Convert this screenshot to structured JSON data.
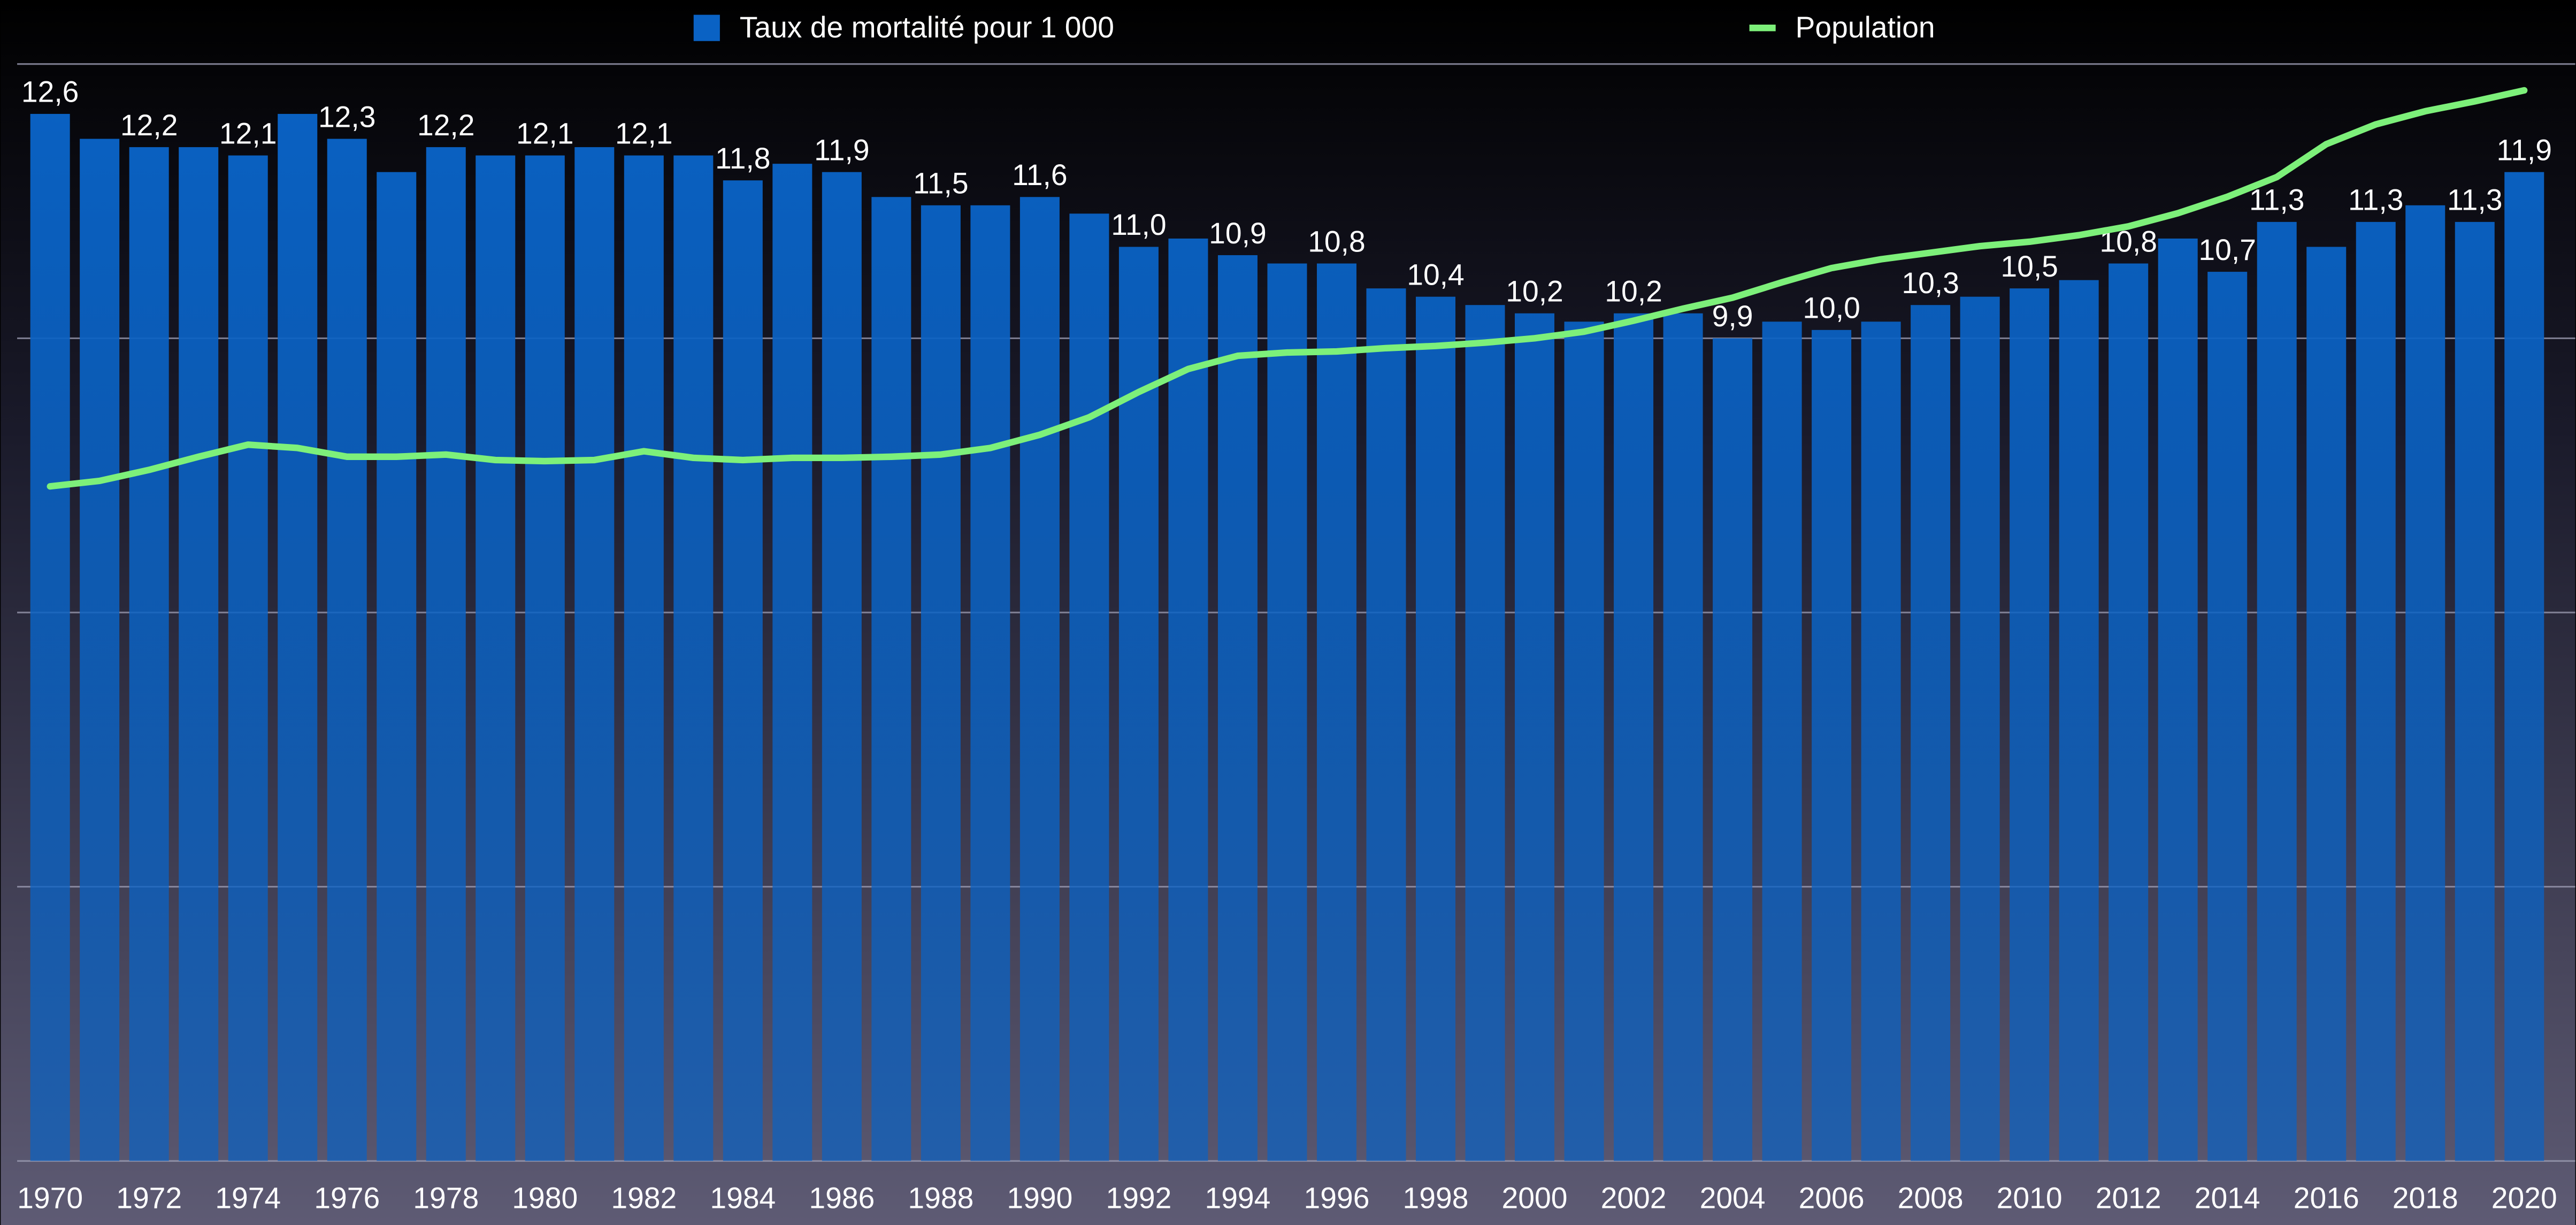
{
  "chart_data": {
    "type": "bar",
    "categories": [
      "1970",
      null,
      "1972",
      null,
      "1974",
      null,
      "1976",
      null,
      "1978",
      null,
      "1980",
      null,
      "1982",
      null,
      "1984",
      null,
      "1986",
      null,
      "1988",
      null,
      "1990",
      null,
      "1992",
      null,
      "1994",
      null,
      "1996",
      null,
      "1998",
      null,
      "2000",
      null,
      "2002",
      null,
      "2004",
      null,
      "2006",
      null,
      "2008",
      null,
      "2010",
      null,
      "2012",
      null,
      "2014",
      null,
      "2016",
      null,
      "2018",
      null,
      "2020"
    ],
    "ylim": [
      0,
      13.2
    ],
    "yticks": [
      0,
      3.3,
      6.6,
      9.9,
      13.2
    ],
    "y2lim": [
      0,
      100
    ],
    "grid": true,
    "series": [
      {
        "name": "Taux de mortalité pour 1 000",
        "type": "bar",
        "color": "#0a62c4",
        "values": [
          12.6,
          12.3,
          12.2,
          12.2,
          12.1,
          12.6,
          12.3,
          11.9,
          12.2,
          12.1,
          12.1,
          12.2,
          12.1,
          12.1,
          11.8,
          12.0,
          11.9,
          11.6,
          11.5,
          11.5,
          11.6,
          11.4,
          11.0,
          11.1,
          10.9,
          10.8,
          10.8,
          10.5,
          10.4,
          10.3,
          10.2,
          10.1,
          10.2,
          10.2,
          9.9,
          10.1,
          10.0,
          10.1,
          10.3,
          10.4,
          10.5,
          10.6,
          10.8,
          11.1,
          10.7,
          11.3,
          11.0,
          11.3,
          11.5,
          11.3,
          11.9
        ],
        "value_labels": [
          "12,6",
          null,
          "12,2",
          null,
          "12,1",
          null,
          "12,3",
          null,
          "12,2",
          null,
          "12,1",
          null,
          "12,1",
          null,
          "11,8",
          null,
          "11,9",
          null,
          "11,5",
          null,
          "11,6",
          null,
          "11,0",
          null,
          "10,9",
          null,
          "10,8",
          null,
          "10,4",
          null,
          "10,2",
          null,
          "10,2",
          null,
          "9,9",
          null,
          "10,0",
          null,
          "10,3",
          null,
          "10,5",
          null,
          "10,8",
          null,
          "10,7",
          "11,3",
          null,
          "11,3",
          null,
          "11,3",
          "11,9"
        ]
      },
      {
        "name": "Population",
        "type": "line",
        "axis": "y2",
        "color": "#7df07a",
        "values": [
          61.5,
          62.0,
          63.0,
          64.2,
          65.3,
          65.0,
          64.2,
          64.2,
          64.4,
          63.9,
          63.8,
          63.9,
          64.7,
          64.1,
          63.9,
          64.1,
          64.1,
          64.2,
          64.4,
          65.0,
          66.2,
          67.8,
          70.1,
          72.2,
          73.4,
          73.7,
          73.8,
          74.1,
          74.3,
          74.6,
          75.0,
          75.6,
          76.6,
          77.7,
          78.7,
          80.1,
          81.4,
          82.2,
          82.8,
          83.4,
          83.8,
          84.4,
          85.2,
          86.4,
          87.9,
          89.7,
          92.7,
          94.5,
          95.7,
          96.6,
          97.6
        ]
      }
    ]
  }
}
